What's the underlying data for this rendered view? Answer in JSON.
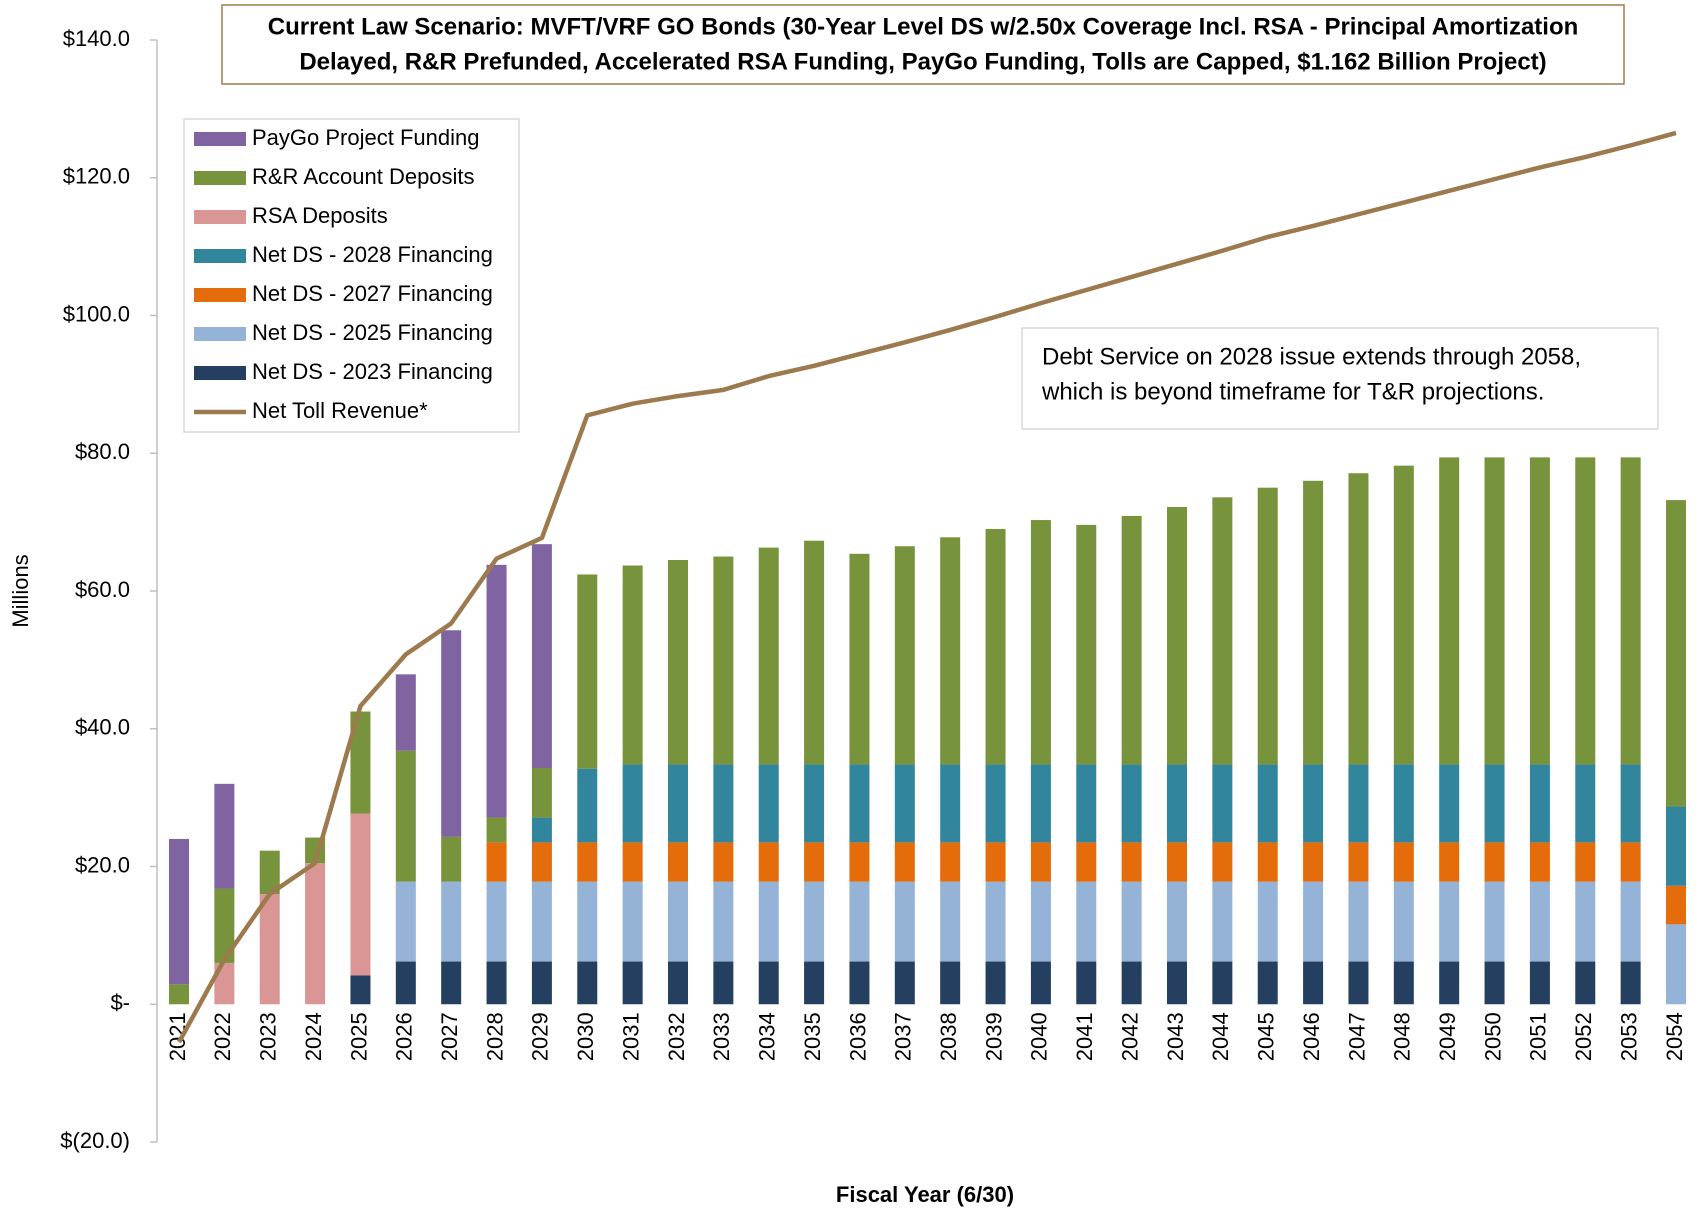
{
  "chart_data": {
    "type": "bar",
    "stacked": true,
    "title": [
      "Current Law Scenario: MVFT/VRF GO Bonds (30-Year Level DS w/2.50x Coverage Incl. RSA - Principal Amortization",
      "Delayed, R&R Prefunded, Accelerated RSA Funding, PayGo Funding, Tolls are Capped, $1.162 Billion Project)"
    ],
    "x_label": "Fiscal Year (6/30)",
    "y_label": "Millions",
    "annotation": [
      "Debt Service on 2028 issue extends through 2058,",
      "which is beyond timeframe for T&R projections."
    ],
    "categories": [
      "2021",
      "2022",
      "2023",
      "2024",
      "2025",
      "2026",
      "2027",
      "2028",
      "2029",
      "2030",
      "2031",
      "2032",
      "2033",
      "2034",
      "2035",
      "2036",
      "2037",
      "2038",
      "2039",
      "2040",
      "2041",
      "2042",
      "2043",
      "2044",
      "2045",
      "2046",
      "2047",
      "2048",
      "2049",
      "2050",
      "2051",
      "2052",
      "2053",
      "2054"
    ],
    "ylim": [
      -20,
      140
    ],
    "yticks": [
      {
        "value": -20,
        "label": "$(20.0)"
      },
      {
        "value": 0,
        "label": "$-"
      },
      {
        "value": 20,
        "label": "$20.0"
      },
      {
        "value": 40,
        "label": "$40.0"
      },
      {
        "value": 60,
        "label": "$60.0"
      },
      {
        "value": 80,
        "label": "$80.0"
      },
      {
        "value": 100,
        "label": "$100.0"
      },
      {
        "value": 120,
        "label": "$120.0"
      },
      {
        "value": 140,
        "label": "$140.0"
      }
    ],
    "series": [
      {
        "name": "Net DS - 2023 Financing",
        "color": "#243f60",
        "values": [
          0,
          0,
          0,
          0,
          4.2,
          6.2,
          6.2,
          6.2,
          6.2,
          6.2,
          6.2,
          6.2,
          6.2,
          6.2,
          6.2,
          6.2,
          6.2,
          6.2,
          6.2,
          6.2,
          6.2,
          6.2,
          6.2,
          6.2,
          6.2,
          6.2,
          6.2,
          6.2,
          6.2,
          6.2,
          6.2,
          6.2,
          6.2,
          0
        ]
      },
      {
        "name": "Net DS - 2025 Financing",
        "color": "#95b3d7",
        "values": [
          0,
          0,
          0,
          0,
          0,
          11.6,
          11.6,
          11.6,
          11.6,
          11.6,
          11.6,
          11.6,
          11.6,
          11.6,
          11.6,
          11.6,
          11.6,
          11.6,
          11.6,
          11.6,
          11.6,
          11.6,
          11.6,
          11.6,
          11.6,
          11.6,
          11.6,
          11.6,
          11.6,
          11.6,
          11.6,
          11.6,
          11.6,
          11.6
        ]
      },
      {
        "name": "Net DS - 2027 Financing",
        "color": "#e46c0a",
        "values": [
          0,
          0,
          0,
          0,
          0,
          0,
          0,
          5.7,
          5.7,
          5.7,
          5.7,
          5.7,
          5.7,
          5.7,
          5.7,
          5.7,
          5.7,
          5.7,
          5.7,
          5.7,
          5.7,
          5.7,
          5.7,
          5.7,
          5.7,
          5.7,
          5.7,
          5.7,
          5.7,
          5.7,
          5.7,
          5.7,
          5.7,
          5.6
        ]
      },
      {
        "name": "Net DS - 2028 Financing",
        "color": "#31859c",
        "values": [
          0,
          0,
          0,
          0,
          0,
          0,
          0,
          0,
          3.6,
          10.7,
          11.3,
          11.3,
          11.3,
          11.3,
          11.3,
          11.3,
          11.3,
          11.3,
          11.3,
          11.3,
          11.3,
          11.3,
          11.3,
          11.3,
          11.3,
          11.3,
          11.3,
          11.3,
          11.3,
          11.3,
          11.3,
          11.3,
          11.3,
          11.5
        ]
      },
      {
        "name": "RSA Deposits",
        "color": "#d99694",
        "values": [
          0,
          6,
          16,
          20.5,
          23.5,
          0,
          0,
          0,
          0,
          0,
          0,
          0,
          0,
          0,
          0,
          0,
          0,
          0,
          0,
          0,
          0,
          0,
          0,
          0,
          0,
          0,
          0,
          0,
          0,
          0,
          0,
          0,
          0,
          0
        ]
      },
      {
        "name": "R&R Account Deposits",
        "color": "#77933c",
        "values": [
          2.9,
          10.8,
          6.3,
          3.7,
          14.8,
          19,
          6.5,
          3.6,
          7.2,
          28.2,
          28.9,
          29.7,
          30.2,
          31.5,
          32.5,
          30.6,
          31.7,
          33,
          34.2,
          35.5,
          34.8,
          36.1,
          37.4,
          38.8,
          40.2,
          41.2,
          42.3,
          43.4,
          44.6,
          44.6,
          44.6,
          44.6,
          44.6,
          44.5
        ]
      },
      {
        "name": "PayGo Project Funding",
        "color": "#8064a2",
        "values": [
          21.1,
          15.2,
          0,
          0,
          0,
          11.1,
          30,
          36.7,
          32.5,
          0,
          0,
          0,
          0,
          0,
          0,
          0,
          0,
          0,
          0,
          0,
          0,
          0,
          0,
          0,
          0,
          0,
          0,
          0,
          0,
          0,
          0,
          0,
          0,
          0
        ]
      },
      {
        "name": "Net Toll Revenue*",
        "type": "line",
        "color": "#9c7a4e",
        "values": [
          -5.5,
          6.5,
          16,
          20.5,
          43.3,
          50.8,
          55.3,
          64.7,
          67.7,
          85.5,
          87.2,
          88.3,
          89.2,
          91.2,
          92.7,
          94.4,
          96.1,
          97.9,
          99.8,
          101.8,
          103.7,
          105.6,
          107.5,
          109.4,
          111.4,
          113,
          114.7,
          116.4,
          118.1,
          119.8,
          121.5,
          123,
          124.7,
          126.5
        ]
      }
    ]
  }
}
